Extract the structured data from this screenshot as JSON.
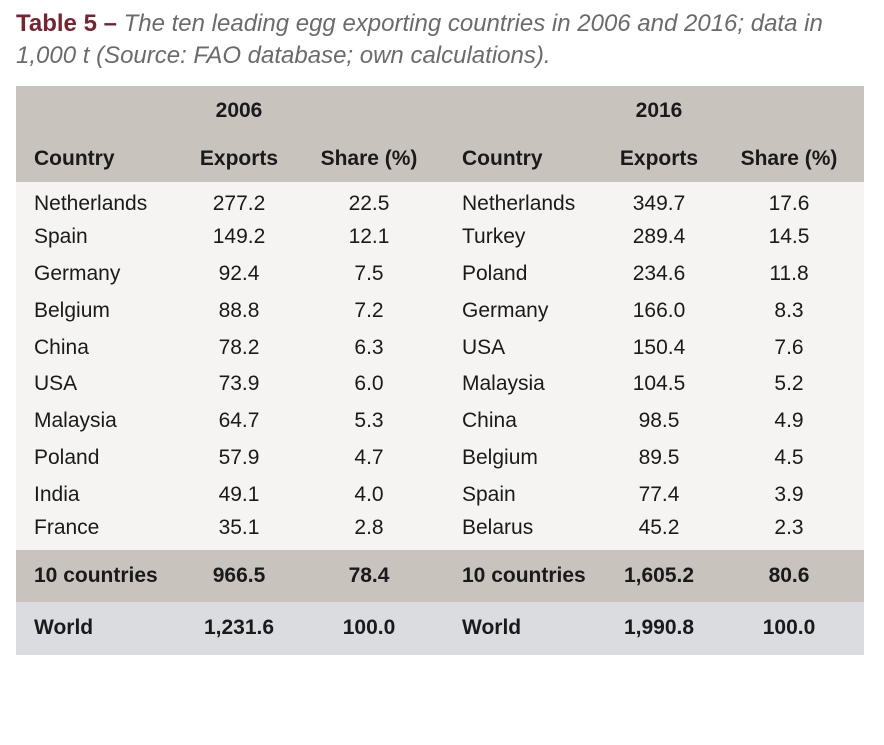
{
  "caption": {
    "label": "Table 5 –",
    "text": "The ten leading egg exporting countries in 2006 and 2016; data in 1,000 t (Source: FAO database; own calculations)."
  },
  "table": {
    "years": [
      "2006",
      "2016"
    ],
    "headers": [
      "Country",
      "Exports",
      "Share (%)",
      "Country",
      "Exports",
      "Share (%)"
    ],
    "rows": [
      [
        "Netherlands",
        "277.2",
        "22.5",
        "Netherlands",
        "349.7",
        "17.6"
      ],
      [
        "Spain",
        "149.2",
        "12.1",
        "Turkey",
        "289.4",
        "14.5"
      ],
      [
        "Germany",
        "92.4",
        "7.5",
        "Poland",
        "234.6",
        "11.8"
      ],
      [
        "Belgium",
        "88.8",
        "7.2",
        "Germany",
        "166.0",
        "8.3"
      ],
      [
        "China",
        "78.2",
        "6.3",
        "USA",
        "150.4",
        "7.6"
      ],
      [
        "USA",
        "73.9",
        "6.0",
        "Malaysia",
        "104.5",
        "5.2"
      ],
      [
        "Malaysia",
        "64.7",
        "5.3",
        "China",
        "98.5",
        "4.9"
      ],
      [
        "Poland",
        "57.9",
        "4.7",
        "Belgium",
        "89.5",
        "4.5"
      ],
      [
        "India",
        "49.1",
        "4.0",
        "Spain",
        "77.4",
        "3.9"
      ],
      [
        "France",
        "35.1",
        "2.8",
        "Belarus",
        "45.2",
        "2.3"
      ]
    ],
    "total": [
      "10 countries",
      "966.5",
      "78.4",
      "10 countries",
      "1,605.2",
      "80.6"
    ],
    "world": [
      "World",
      "1,231.6",
      "100.0",
      "World",
      "1,990.8",
      "100.0"
    ]
  }
}
